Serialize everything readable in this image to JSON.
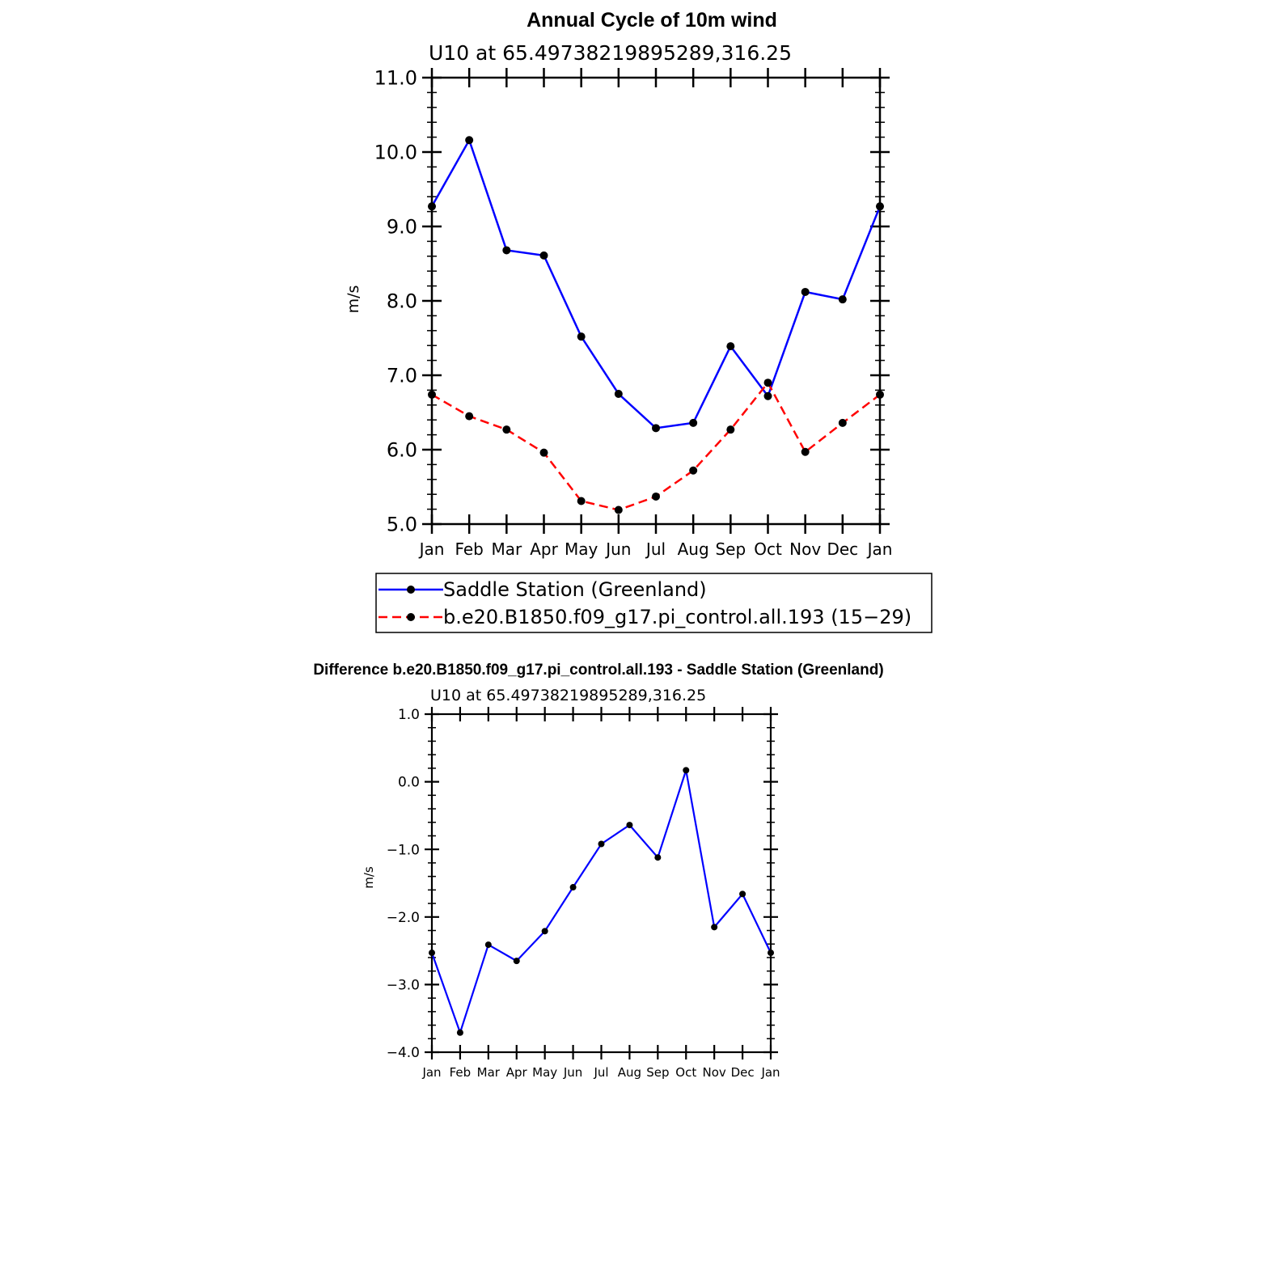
{
  "chart_data": [
    {
      "type": "line",
      "title": "Annual Cycle of 10m wind",
      "subtitle": "U10 at 65.49738219895289,316.25",
      "ylabel": "m/s",
      "xlabel": "",
      "categories": [
        "Jan",
        "Feb",
        "Mar",
        "Apr",
        "May",
        "Jun",
        "Jul",
        "Aug",
        "Sep",
        "Oct",
        "Nov",
        "Dec",
        "Jan"
      ],
      "ylim": [
        5.0,
        11.0
      ],
      "yticks": [
        "5.0",
        "6.0",
        "7.0",
        "8.0",
        "9.0",
        "10.0",
        "11.0"
      ],
      "grid": false,
      "legend_position": "bottom",
      "series": [
        {
          "name": "Saddle Station (Greenland)",
          "color": "#0000ff",
          "style": "solid",
          "values": [
            9.27,
            10.16,
            8.68,
            8.61,
            7.52,
            6.75,
            6.29,
            6.36,
            7.39,
            6.72,
            8.12,
            8.02,
            9.27
          ]
        },
        {
          "name": "b.e20.B1850.f09_g17.pi_control.all.193 (15−29)",
          "color": "#ff0000",
          "style": "dashed",
          "values": [
            6.74,
            6.45,
            6.27,
            5.96,
            5.31,
            5.19,
            5.37,
            5.72,
            6.27,
            6.9,
            5.97,
            6.36,
            6.74
          ]
        }
      ]
    },
    {
      "type": "line",
      "title": "Difference b.e20.B1850.f09_g17.pi_control.all.193 - Saddle Station (Greenland)",
      "subtitle": "U10 at 65.49738219895289,316.25",
      "ylabel": "m/s",
      "xlabel": "",
      "categories": [
        "Jan",
        "Feb",
        "Mar",
        "Apr",
        "May",
        "Jun",
        "Jul",
        "Aug",
        "Sep",
        "Oct",
        "Nov",
        "Dec",
        "Jan"
      ],
      "ylim": [
        -4.0,
        1.0
      ],
      "yticks": [
        "−4.0",
        "−3.0",
        "−2.0",
        "−1.0",
        "0.0",
        "1.0"
      ],
      "grid": false,
      "series": [
        {
          "color": "#0000ff",
          "style": "solid",
          "values": [
            -2.53,
            -3.71,
            -2.41,
            -2.65,
            -2.21,
            -1.56,
            -0.92,
            -0.64,
            -1.12,
            0.17,
            -2.15,
            -1.66,
            -2.53
          ]
        }
      ]
    }
  ]
}
